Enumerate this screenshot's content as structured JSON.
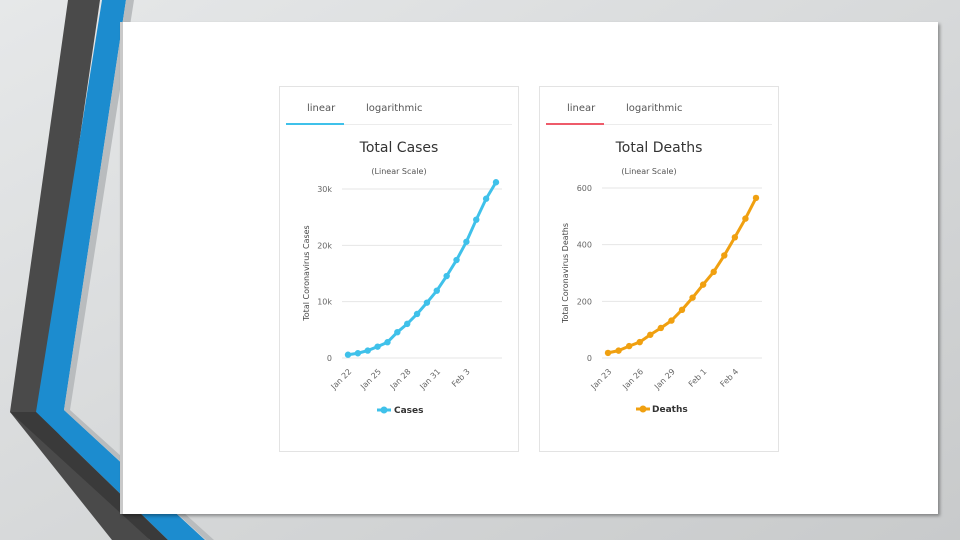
{
  "charts": [
    {
      "tabs": [
        {
          "label": "linear",
          "active": true
        },
        {
          "label": "logarithmic",
          "active": false
        }
      ],
      "color": "#3fc1ea",
      "tab_accent": "#3fc1ea"
    },
    {
      "tabs": [
        {
          "label": "linear",
          "active": true
        },
        {
          "label": "logarithmic",
          "active": false
        }
      ],
      "color": "#f0a010",
      "tab_accent": "#ee5b6a"
    }
  ],
  "chart_data": [
    {
      "type": "line",
      "title": "Total Cases",
      "subtitle": "(Linear Scale)",
      "ylabel": "Total Coronavirus Cases",
      "xlabel": "",
      "ylim": [
        0,
        30000
      ],
      "y_ticks": [
        0,
        10000,
        20000,
        30000
      ],
      "y_tick_labels": [
        "0",
        "10k",
        "20k",
        "30k"
      ],
      "x": [
        "Jan 22",
        "Jan 23",
        "Jan 24",
        "Jan 25",
        "Jan 26",
        "Jan 27",
        "Jan 28",
        "Jan 29",
        "Jan 30",
        "Jan 31",
        "Feb 1",
        "Feb 2",
        "Feb 3",
        "Feb 4",
        "Feb 5",
        "Feb 6"
      ],
      "x_tick_labels": [
        "Jan 22",
        "Jan 25",
        "Jan 28",
        "Jan 31",
        "Feb 3"
      ],
      "grid": true,
      "legend": "bottom",
      "series": [
        {
          "name": "Cases",
          "values": [
            580,
            845,
            1317,
            2015,
            2800,
            4581,
            6058,
            7813,
            9823,
            11950,
            14553,
            17391,
            20630,
            24554,
            28276,
            31200
          ]
        }
      ]
    },
    {
      "type": "line",
      "title": "Total Deaths",
      "subtitle": "(Linear Scale)",
      "ylabel": "Total Coronavirus Deaths",
      "xlabel": "",
      "ylim": [
        0,
        640
      ],
      "y_ticks": [
        0,
        200,
        400,
        600
      ],
      "y_tick_labels": [
        "0",
        "200",
        "400",
        "600"
      ],
      "x": [
        "Jan 23",
        "Jan 24",
        "Jan 25",
        "Jan 26",
        "Jan 27",
        "Jan 28",
        "Jan 29",
        "Jan 30",
        "Jan 31",
        "Feb 1",
        "Feb 2",
        "Feb 3",
        "Feb 4",
        "Feb 5",
        "Feb 6"
      ],
      "x_tick_labels": [
        "Jan 23",
        "Jan 26",
        "Jan 29",
        "Feb 1",
        "Feb 4"
      ],
      "grid": true,
      "legend": "bottom",
      "series": [
        {
          "name": "Deaths",
          "values": [
            18,
            26,
            42,
            56,
            82,
            106,
            132,
            170,
            213,
            259,
            304,
            362,
            426,
            492,
            565
          ]
        }
      ]
    }
  ]
}
